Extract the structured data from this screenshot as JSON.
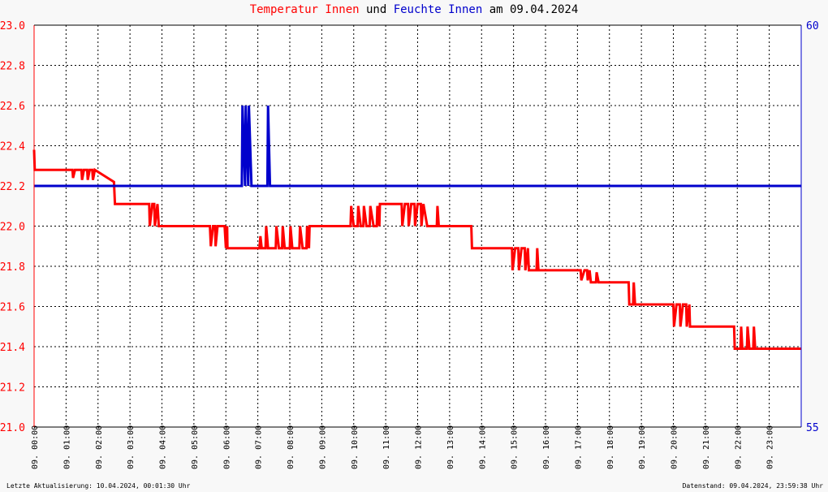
{
  "title": {
    "part1": "Temperatur Innen",
    "part2": " und ",
    "part3": "Feuchte Innen",
    "part4": " am 09.04.2024"
  },
  "colors": {
    "temperature": "#ff0000",
    "humidity": "#0000cc",
    "grid": "#000000",
    "background": "#ffffff",
    "left_axis": "#ff0000",
    "right_axis": "#0000cc"
  },
  "footer": {
    "left": "Letzte Aktualisierung: 10.04.2024, 00:01:30 Uhr",
    "right": "Datenstand: 09.04.2024, 23:59:38 Uhr"
  },
  "chart_data": {
    "type": "line",
    "grid": true,
    "x_unit": "hours",
    "xlim": [
      0,
      24
    ],
    "x_tick_labels": [
      "09. 00:00",
      "09. 01:00",
      "09. 02:00",
      "09. 03:00",
      "09. 04:00",
      "09. 05:00",
      "09. 06:00",
      "09. 07:00",
      "09. 08:00",
      "09. 09:00",
      "09. 10:00",
      "09. 11:00",
      "09. 12:00",
      "09. 13:00",
      "09. 14:00",
      "09. 15:00",
      "09. 16:00",
      "09. 17:00",
      "09. 18:00",
      "09. 19:00",
      "09. 20:00",
      "09. 21:00",
      "09. 22:00",
      "09. 23:00"
    ],
    "y_left": {
      "ylim": [
        21.0,
        23.0
      ],
      "ticks": [
        "21.0",
        "21.2",
        "21.4",
        "21.6",
        "21.8",
        "22.0",
        "22.2",
        "22.4",
        "22.6",
        "22.8",
        "23.0"
      ]
    },
    "y_right": {
      "ylim": [
        55,
        60
      ],
      "ticks": [
        "55",
        "60"
      ]
    },
    "series": [
      {
        "axis": "left",
        "points": [
          [
            0.0,
            22.38
          ],
          [
            0.02,
            22.28
          ],
          [
            1.2,
            22.28
          ],
          [
            1.22,
            22.24
          ],
          [
            1.28,
            22.28
          ],
          [
            1.48,
            22.28
          ],
          [
            1.5,
            22.23
          ],
          [
            1.56,
            22.28
          ],
          [
            1.66,
            22.28
          ],
          [
            1.68,
            22.23
          ],
          [
            1.74,
            22.28
          ],
          [
            1.82,
            22.28
          ],
          [
            1.84,
            22.23
          ],
          [
            1.9,
            22.28
          ],
          [
            2.5,
            22.22
          ],
          [
            2.53,
            22.11
          ],
          [
            3.6,
            22.11
          ],
          [
            3.62,
            22.0
          ],
          [
            3.7,
            22.11
          ],
          [
            3.76,
            22.11
          ],
          [
            3.78,
            22.0
          ],
          [
            3.86,
            22.11
          ],
          [
            3.9,
            22.0
          ],
          [
            5.5,
            22.0
          ],
          [
            5.53,
            21.9
          ],
          [
            5.6,
            22.0
          ],
          [
            5.66,
            22.0
          ],
          [
            5.68,
            21.9
          ],
          [
            5.74,
            22.0
          ],
          [
            5.96,
            22.0
          ],
          [
            6.0,
            21.89
          ],
          [
            6.04,
            22.0
          ],
          [
            6.05,
            21.89
          ],
          [
            7.05,
            21.89
          ],
          [
            7.08,
            21.95
          ],
          [
            7.12,
            21.89
          ],
          [
            7.24,
            21.89
          ],
          [
            7.26,
            22.0
          ],
          [
            7.32,
            21.89
          ],
          [
            7.56,
            21.89
          ],
          [
            7.58,
            22.0
          ],
          [
            7.66,
            21.89
          ],
          [
            7.76,
            21.89
          ],
          [
            7.78,
            22.0
          ],
          [
            7.84,
            21.89
          ],
          [
            8.0,
            21.89
          ],
          [
            8.02,
            22.0
          ],
          [
            8.08,
            21.89
          ],
          [
            8.3,
            21.89
          ],
          [
            8.32,
            22.0
          ],
          [
            8.4,
            21.89
          ],
          [
            8.52,
            21.89
          ],
          [
            8.54,
            22.0
          ],
          [
            8.6,
            21.89
          ],
          [
            8.62,
            22.0
          ],
          [
            9.9,
            22.0
          ],
          [
            9.92,
            22.1
          ],
          [
            10.0,
            22.0
          ],
          [
            10.12,
            22.0
          ],
          [
            10.14,
            22.1
          ],
          [
            10.22,
            22.0
          ],
          [
            10.3,
            22.0
          ],
          [
            10.32,
            22.1
          ],
          [
            10.4,
            22.0
          ],
          [
            10.5,
            22.0
          ],
          [
            10.52,
            22.1
          ],
          [
            10.62,
            22.0
          ],
          [
            10.72,
            22.0
          ],
          [
            10.74,
            22.1
          ],
          [
            10.8,
            22.0
          ],
          [
            10.82,
            22.11
          ],
          [
            11.5,
            22.11
          ],
          [
            11.52,
            22.0
          ],
          [
            11.6,
            22.11
          ],
          [
            11.7,
            22.11
          ],
          [
            11.72,
            22.0
          ],
          [
            11.8,
            22.11
          ],
          [
            11.9,
            22.11
          ],
          [
            11.92,
            22.0
          ],
          [
            12.0,
            22.11
          ],
          [
            12.1,
            22.11
          ],
          [
            12.12,
            22.0
          ],
          [
            12.18,
            22.11
          ],
          [
            12.3,
            22.0
          ],
          [
            12.6,
            22.0
          ],
          [
            12.62,
            22.1
          ],
          [
            12.66,
            22.0
          ],
          [
            13.68,
            22.0
          ],
          [
            13.7,
            21.89
          ],
          [
            14.95,
            21.89
          ],
          [
            14.97,
            21.78
          ],
          [
            15.05,
            21.89
          ],
          [
            15.15,
            21.89
          ],
          [
            15.17,
            21.78
          ],
          [
            15.25,
            21.89
          ],
          [
            15.35,
            21.89
          ],
          [
            15.37,
            21.78
          ],
          [
            15.45,
            21.89
          ],
          [
            15.48,
            21.78
          ],
          [
            15.72,
            21.78
          ],
          [
            15.74,
            21.89
          ],
          [
            15.78,
            21.78
          ],
          [
            17.1,
            21.78
          ],
          [
            17.12,
            21.73
          ],
          [
            17.22,
            21.78
          ],
          [
            17.3,
            21.78
          ],
          [
            17.32,
            21.73
          ],
          [
            17.38,
            21.78
          ],
          [
            17.42,
            21.72
          ],
          [
            17.58,
            21.72
          ],
          [
            17.6,
            21.77
          ],
          [
            17.66,
            21.72
          ],
          [
            18.6,
            21.72
          ],
          [
            18.62,
            21.61
          ],
          [
            18.74,
            21.61
          ],
          [
            18.76,
            21.72
          ],
          [
            18.8,
            21.61
          ],
          [
            20.0,
            21.61
          ],
          [
            20.02,
            21.5
          ],
          [
            20.1,
            21.61
          ],
          [
            20.2,
            21.61
          ],
          [
            20.22,
            21.5
          ],
          [
            20.3,
            21.61
          ],
          [
            20.4,
            21.61
          ],
          [
            20.42,
            21.5
          ],
          [
            20.5,
            21.61
          ],
          [
            20.52,
            21.5
          ],
          [
            21.9,
            21.5
          ],
          [
            21.92,
            21.39
          ],
          [
            22.1,
            21.39
          ],
          [
            22.12,
            21.5
          ],
          [
            22.16,
            21.39
          ],
          [
            22.3,
            21.39
          ],
          [
            22.32,
            21.5
          ],
          [
            22.38,
            21.39
          ],
          [
            22.5,
            21.39
          ],
          [
            22.52,
            21.5
          ],
          [
            22.56,
            21.39
          ],
          [
            24.0,
            21.39
          ]
        ]
      },
      {
        "axis": "right",
        "points": [
          [
            0.0,
            58.0
          ],
          [
            6.5,
            58.0
          ],
          [
            6.52,
            59.0
          ],
          [
            6.6,
            58.0
          ],
          [
            6.62,
            59.0
          ],
          [
            6.7,
            58.0
          ],
          [
            6.72,
            59.0
          ],
          [
            6.8,
            58.0
          ],
          [
            7.3,
            58.0
          ],
          [
            7.32,
            59.0
          ],
          [
            7.38,
            58.0
          ],
          [
            24.0,
            58.0
          ]
        ]
      }
    ]
  }
}
